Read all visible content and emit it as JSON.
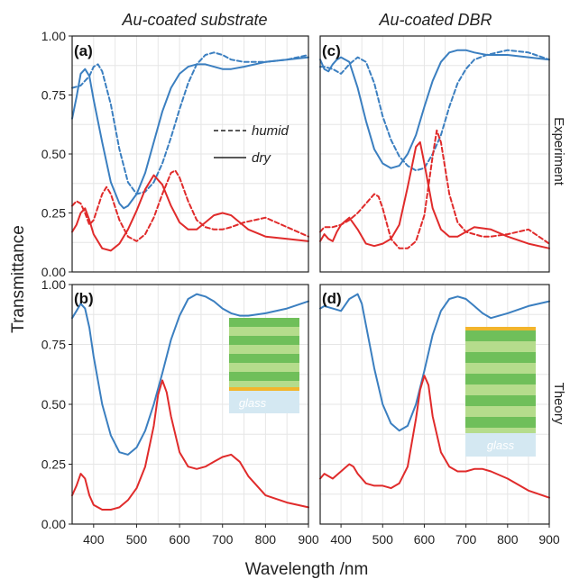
{
  "figure": {
    "column_titles": [
      "Au-coated substrate",
      "Au-coated DBR"
    ],
    "row_titles": [
      "Experiment",
      "Theory"
    ],
    "ylabel": "Transmittance",
    "xlabel": "Wavelength /nm",
    "x_ticks": [
      400,
      500,
      600,
      700,
      800,
      900
    ],
    "y_ticks": [
      "0.00",
      "0.25",
      "0.50",
      "0.75",
      "1.00"
    ],
    "legend": {
      "dashed": "humid",
      "solid": "dry"
    },
    "glass_label": "glass",
    "colors": {
      "blue": "#3b7fc0",
      "red": "#e02b2b",
      "gold": "#f2b52c",
      "dark_green": "#6fbf5a",
      "light_green": "#b5dc8c",
      "glass": "#d4e8f2"
    }
  },
  "chart_data": [
    {
      "type": "line",
      "panel": "(a)",
      "xlim": [
        350,
        900
      ],
      "ylim": [
        0,
        1
      ],
      "series": [
        {
          "name": "dry",
          "color": "blue",
          "dash": false,
          "x": [
            350,
            360,
            370,
            380,
            390,
            400,
            420,
            440,
            460,
            470,
            480,
            500,
            520,
            540,
            560,
            580,
            600,
            620,
            640,
            660,
            680,
            700,
            720,
            750,
            800,
            850,
            900
          ],
          "y": [
            0.65,
            0.74,
            0.84,
            0.86,
            0.83,
            0.73,
            0.55,
            0.38,
            0.29,
            0.27,
            0.28,
            0.33,
            0.42,
            0.55,
            0.68,
            0.78,
            0.84,
            0.87,
            0.88,
            0.88,
            0.87,
            0.86,
            0.86,
            0.87,
            0.89,
            0.9,
            0.91
          ]
        },
        {
          "name": "humid",
          "color": "blue",
          "dash": true,
          "x": [
            350,
            370,
            390,
            400,
            410,
            420,
            440,
            460,
            480,
            500,
            520,
            540,
            560,
            580,
            600,
            620,
            640,
            660,
            680,
            700,
            720,
            750,
            800,
            850,
            900
          ],
          "y": [
            0.78,
            0.79,
            0.83,
            0.87,
            0.88,
            0.85,
            0.71,
            0.52,
            0.38,
            0.33,
            0.34,
            0.38,
            0.46,
            0.57,
            0.69,
            0.8,
            0.88,
            0.92,
            0.93,
            0.92,
            0.9,
            0.89,
            0.89,
            0.9,
            0.92
          ]
        },
        {
          "name": "dry",
          "color": "red",
          "dash": false,
          "x": [
            350,
            360,
            370,
            380,
            390,
            400,
            420,
            440,
            460,
            480,
            500,
            520,
            540,
            560,
            580,
            600,
            620,
            640,
            660,
            680,
            700,
            720,
            740,
            760,
            800,
            850,
            900
          ],
          "y": [
            0.17,
            0.2,
            0.25,
            0.27,
            0.22,
            0.16,
            0.1,
            0.09,
            0.12,
            0.18,
            0.26,
            0.35,
            0.41,
            0.37,
            0.28,
            0.21,
            0.18,
            0.18,
            0.21,
            0.24,
            0.25,
            0.24,
            0.21,
            0.18,
            0.15,
            0.14,
            0.13
          ]
        },
        {
          "name": "humid",
          "color": "red",
          "dash": true,
          "x": [
            350,
            360,
            370,
            380,
            390,
            400,
            420,
            430,
            440,
            460,
            480,
            500,
            520,
            540,
            560,
            580,
            590,
            600,
            620,
            640,
            660,
            680,
            700,
            720,
            750,
            800,
            850,
            900
          ],
          "y": [
            0.28,
            0.3,
            0.29,
            0.25,
            0.2,
            0.22,
            0.33,
            0.36,
            0.33,
            0.22,
            0.15,
            0.13,
            0.16,
            0.23,
            0.33,
            0.42,
            0.43,
            0.4,
            0.3,
            0.22,
            0.19,
            0.18,
            0.18,
            0.19,
            0.21,
            0.23,
            0.19,
            0.15
          ]
        }
      ]
    },
    {
      "type": "line",
      "panel": "(b)",
      "xlim": [
        350,
        900
      ],
      "ylim": [
        0,
        1
      ],
      "series": [
        {
          "name": "blue",
          "color": "blue",
          "dash": false,
          "x": [
            350,
            360,
            370,
            380,
            390,
            400,
            420,
            440,
            460,
            480,
            500,
            520,
            540,
            560,
            580,
            600,
            620,
            640,
            660,
            680,
            700,
            720,
            740,
            760,
            800,
            850,
            900
          ],
          "y": [
            0.86,
            0.89,
            0.92,
            0.9,
            0.82,
            0.7,
            0.5,
            0.37,
            0.3,
            0.29,
            0.32,
            0.39,
            0.5,
            0.63,
            0.77,
            0.87,
            0.94,
            0.96,
            0.95,
            0.93,
            0.9,
            0.88,
            0.87,
            0.87,
            0.88,
            0.9,
            0.93
          ]
        },
        {
          "name": "red",
          "color": "red",
          "dash": false,
          "x": [
            350,
            360,
            370,
            380,
            390,
            400,
            420,
            440,
            460,
            480,
            500,
            520,
            540,
            550,
            560,
            570,
            580,
            600,
            620,
            640,
            660,
            680,
            700,
            720,
            740,
            760,
            800,
            850,
            900
          ],
          "y": [
            0.12,
            0.16,
            0.21,
            0.19,
            0.12,
            0.08,
            0.06,
            0.06,
            0.07,
            0.1,
            0.15,
            0.24,
            0.41,
            0.54,
            0.6,
            0.55,
            0.45,
            0.3,
            0.24,
            0.23,
            0.24,
            0.26,
            0.28,
            0.29,
            0.26,
            0.2,
            0.12,
            0.09,
            0.07
          ]
        }
      ]
    },
    {
      "type": "line",
      "panel": "(c)",
      "xlim": [
        350,
        900
      ],
      "ylim": [
        0,
        1
      ],
      "series": [
        {
          "name": "dry",
          "color": "blue",
          "dash": false,
          "x": [
            350,
            360,
            370,
            380,
            390,
            400,
            420,
            440,
            460,
            480,
            500,
            520,
            540,
            560,
            580,
            600,
            620,
            640,
            660,
            680,
            700,
            720,
            750,
            800,
            850,
            900
          ],
          "y": [
            0.9,
            0.86,
            0.85,
            0.88,
            0.9,
            0.91,
            0.89,
            0.78,
            0.64,
            0.52,
            0.46,
            0.44,
            0.45,
            0.5,
            0.58,
            0.7,
            0.81,
            0.89,
            0.93,
            0.94,
            0.94,
            0.93,
            0.92,
            0.92,
            0.91,
            0.9
          ]
        },
        {
          "name": "humid",
          "color": "blue",
          "dash": true,
          "x": [
            350,
            360,
            380,
            400,
            420,
            440,
            460,
            480,
            500,
            520,
            540,
            560,
            580,
            600,
            620,
            640,
            660,
            680,
            700,
            720,
            750,
            800,
            850,
            900
          ],
          "y": [
            0.87,
            0.87,
            0.86,
            0.84,
            0.88,
            0.91,
            0.89,
            0.8,
            0.66,
            0.56,
            0.49,
            0.45,
            0.43,
            0.44,
            0.5,
            0.58,
            0.7,
            0.8,
            0.86,
            0.9,
            0.92,
            0.94,
            0.93,
            0.9
          ]
        },
        {
          "name": "dry",
          "color": "red",
          "dash": false,
          "x": [
            350,
            360,
            370,
            380,
            390,
            400,
            420,
            440,
            460,
            480,
            500,
            520,
            540,
            560,
            580,
            590,
            600,
            620,
            640,
            660,
            680,
            700,
            720,
            760,
            800,
            850,
            900
          ],
          "y": [
            0.13,
            0.16,
            0.14,
            0.13,
            0.17,
            0.2,
            0.23,
            0.18,
            0.12,
            0.11,
            0.12,
            0.14,
            0.2,
            0.36,
            0.53,
            0.55,
            0.46,
            0.27,
            0.18,
            0.15,
            0.15,
            0.17,
            0.19,
            0.18,
            0.15,
            0.12,
            0.1
          ]
        },
        {
          "name": "humid",
          "color": "red",
          "dash": true,
          "x": [
            350,
            360,
            380,
            400,
            420,
            440,
            460,
            480,
            490,
            500,
            520,
            540,
            560,
            580,
            600,
            620,
            630,
            640,
            660,
            680,
            700,
            720,
            740,
            760,
            800,
            850,
            900
          ],
          "y": [
            0.17,
            0.19,
            0.19,
            0.2,
            0.22,
            0.25,
            0.29,
            0.33,
            0.32,
            0.27,
            0.14,
            0.1,
            0.1,
            0.13,
            0.24,
            0.49,
            0.6,
            0.55,
            0.33,
            0.21,
            0.17,
            0.16,
            0.15,
            0.15,
            0.16,
            0.18,
            0.12
          ]
        }
      ]
    },
    {
      "type": "line",
      "panel": "(d)",
      "xlim": [
        350,
        900
      ],
      "ylim": [
        0,
        1
      ],
      "series": [
        {
          "name": "blue",
          "color": "blue",
          "dash": false,
          "x": [
            350,
            360,
            380,
            400,
            420,
            440,
            450,
            460,
            480,
            500,
            520,
            540,
            560,
            580,
            600,
            620,
            640,
            660,
            680,
            700,
            720,
            740,
            760,
            800,
            850,
            900
          ],
          "y": [
            0.9,
            0.91,
            0.9,
            0.89,
            0.94,
            0.96,
            0.92,
            0.83,
            0.65,
            0.5,
            0.42,
            0.39,
            0.41,
            0.5,
            0.64,
            0.79,
            0.89,
            0.94,
            0.95,
            0.94,
            0.91,
            0.88,
            0.86,
            0.88,
            0.91,
            0.93
          ]
        },
        {
          "name": "red",
          "color": "red",
          "dash": false,
          "x": [
            350,
            360,
            380,
            400,
            420,
            430,
            440,
            460,
            480,
            500,
            520,
            540,
            560,
            580,
            590,
            600,
            610,
            620,
            640,
            660,
            680,
            700,
            720,
            740,
            760,
            800,
            850,
            900
          ],
          "y": [
            0.19,
            0.21,
            0.19,
            0.22,
            0.25,
            0.24,
            0.21,
            0.17,
            0.16,
            0.16,
            0.15,
            0.17,
            0.24,
            0.44,
            0.56,
            0.62,
            0.58,
            0.45,
            0.3,
            0.24,
            0.22,
            0.22,
            0.23,
            0.23,
            0.22,
            0.19,
            0.14,
            0.11
          ]
        }
      ]
    }
  ]
}
